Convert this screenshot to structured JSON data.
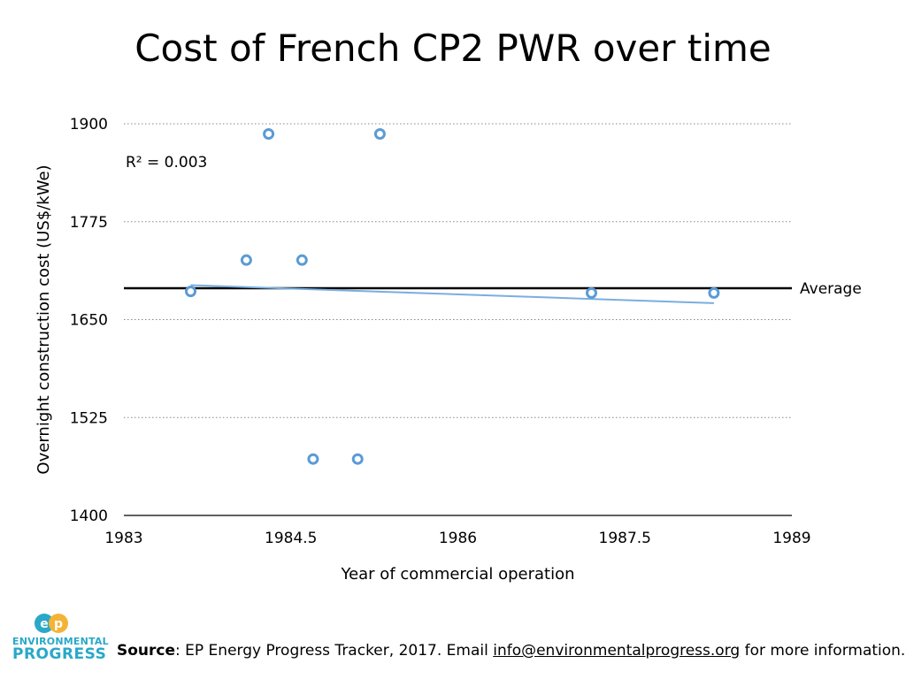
{
  "title": "Cost of French CP2 PWR over time",
  "chart_data": {
    "type": "scatter",
    "xlabel": "Year of commercial operation",
    "ylabel": "Overnight construction cost (US$/kWe)",
    "xlim": [
      1983,
      1989
    ],
    "ylim": [
      1400,
      1900
    ],
    "xticks": [
      1983,
      1984.5,
      1986,
      1987.5,
      1989
    ],
    "xtick_labels": [
      "1983",
      "1984.5",
      "1986",
      "1987.5",
      "1989"
    ],
    "yticks": [
      1400,
      1525,
      1650,
      1775,
      1900
    ],
    "ytick_labels": [
      "1400",
      "1525",
      "1650",
      "1775",
      "1900"
    ],
    "grid": "horizontal dotted",
    "points": [
      {
        "x": 1983.6,
        "y": 1686
      },
      {
        "x": 1984.1,
        "y": 1726
      },
      {
        "x": 1984.3,
        "y": 1887
      },
      {
        "x": 1984.6,
        "y": 1726
      },
      {
        "x": 1984.7,
        "y": 1472
      },
      {
        "x": 1985.1,
        "y": 1472
      },
      {
        "x": 1985.3,
        "y": 1887
      },
      {
        "x": 1987.2,
        "y": 1684
      },
      {
        "x": 1988.3,
        "y": 1684
      }
    ],
    "trendline": {
      "x": [
        1983.6,
        1988.3
      ],
      "y": [
        1694,
        1671
      ]
    },
    "r_squared_label": "R² = 0.003",
    "average": {
      "y": 1690,
      "label": "Average"
    },
    "colors": {
      "points": "#5b9bd5",
      "trend": "#7aaee0",
      "average": "#000000",
      "grid": "#888888"
    }
  },
  "logo": {
    "line1": "ENVIRONMENTAL",
    "line2": "PROGRESS",
    "mark": "EP",
    "color": "#29a8c8",
    "accent": "#f5b335"
  },
  "footer": {
    "source_label": "Source",
    "source_text": ": EP Energy Progress Tracker, 2017. Email ",
    "email": "info@environmentalprogress.org",
    "source_tail": " for more information."
  }
}
